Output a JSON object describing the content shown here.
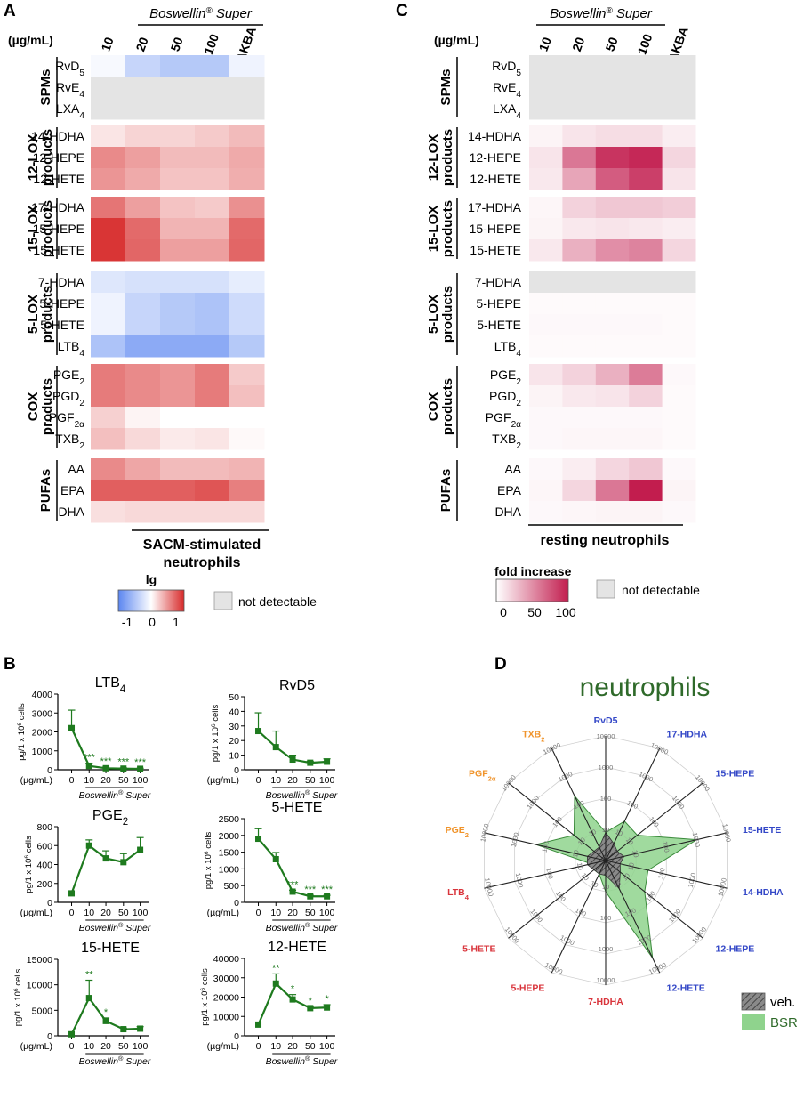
{
  "panel_labels": {
    "a": "A",
    "b": "B",
    "c": "C",
    "d": "D"
  },
  "heatmap_common": {
    "group_title": "Boswellin",
    "group_reg": "®",
    "group_super": " Super",
    "unit_label": "(µg/mL)",
    "columns": [
      "10",
      "20",
      "50",
      "100",
      "AKBA"
    ],
    "sections": [
      {
        "name": "SPMs",
        "name2": "",
        "rows": [
          "RvD",
          "RvE",
          "LXA"
        ],
        "subs": [
          "5",
          "4",
          "4"
        ]
      },
      {
        "name": "12-LOX",
        "name2": "products",
        "rows": [
          "14-HDHA",
          "12-HEPE",
          "12-HETE"
        ],
        "subs": [
          "",
          "",
          ""
        ]
      },
      {
        "name": "15-LOX",
        "name2": "products",
        "rows": [
          "17-HDHA",
          "15-HEPE",
          "15-HETE"
        ],
        "subs": [
          "",
          "",
          ""
        ]
      },
      {
        "name": "5-LOX",
        "name2": "products",
        "rows": [
          "7-HDHA",
          "5-HEPE",
          "5-HETE",
          "LTB"
        ],
        "subs": [
          "",
          "",
          "",
          "4"
        ]
      },
      {
        "name": "COX",
        "name2": "products",
        "rows": [
          "PGE",
          "PGD",
          "PGF",
          "TXB"
        ],
        "subs": [
          "2",
          "2",
          "2α",
          "2"
        ]
      },
      {
        "name": "PUFAs",
        "name2": "",
        "rows": [
          "AA",
          "EPA",
          "DHA"
        ],
        "subs": [
          "",
          "",
          ""
        ]
      }
    ]
  },
  "panel_a": {
    "title_line1": "SACM-stimulated",
    "title_line2": "neutrophils",
    "legend_title": "lg",
    "legend_ticks": [
      "-1",
      "0",
      "1"
    ],
    "nd_label": "not detectable"
  },
  "panel_c": {
    "title": "resting neutrophils",
    "legend_title": "fold increase",
    "legend_ticks": [
      "0",
      "50",
      "100"
    ],
    "nd_label": "not detectable"
  },
  "panel_b_common": {
    "ylabel": "pg/1 x 10",
    "ylabel_sup": "6",
    "ylabel_end": " cells",
    "xunit": "(µg/mL)",
    "xgroup": "Boswellin",
    "xgroup_reg": "®",
    "xgroup_super": " Super"
  },
  "panel_d": {
    "title": "neutrophils",
    "legend": [
      "veh.",
      "BSR"
    ]
  },
  "chart_data": [
    {
      "type": "heatmap",
      "id": "A",
      "title": "SACM-stimulated neutrophils",
      "scale": "lg",
      "range": [
        -1,
        1
      ],
      "columns": [
        "10",
        "20",
        "50",
        "100",
        "AKBA"
      ],
      "rows": [
        {
          "label": "RvD5",
          "values": [
            -0.05,
            -0.35,
            -0.45,
            -0.45,
            -0.1
          ]
        },
        {
          "label": "RvE4",
          "values": [
            null,
            null,
            null,
            null,
            null
          ]
        },
        {
          "label": "LXA4",
          "values": [
            null,
            null,
            null,
            null,
            null
          ]
        },
        {
          "label": "14-HDHA",
          "values": [
            0.12,
            0.2,
            0.2,
            0.25,
            0.32
          ]
        },
        {
          "label": "12-HEPE",
          "values": [
            0.55,
            0.45,
            0.32,
            0.32,
            0.4
          ]
        },
        {
          "label": "12-HETE",
          "values": [
            0.5,
            0.4,
            0.28,
            0.28,
            0.38
          ]
        },
        {
          "label": "17-HDHA",
          "values": [
            0.65,
            0.45,
            0.28,
            0.25,
            0.52
          ]
        },
        {
          "label": "15-HEPE",
          "values": [
            0.95,
            0.7,
            0.35,
            0.35,
            0.7
          ]
        },
        {
          "label": "15-HETE",
          "values": [
            0.95,
            0.72,
            0.45,
            0.45,
            0.72
          ]
        },
        {
          "label": "7-HDHA",
          "values": [
            -0.2,
            -0.25,
            -0.25,
            -0.25,
            -0.15
          ]
        },
        {
          "label": "5-HEPE",
          "values": [
            -0.1,
            -0.35,
            -0.45,
            -0.5,
            -0.3
          ]
        },
        {
          "label": "5-HETE",
          "values": [
            -0.1,
            -0.35,
            -0.45,
            -0.5,
            -0.3
          ]
        },
        {
          "label": "LTB4",
          "values": [
            -0.5,
            -0.7,
            -0.7,
            -0.7,
            -0.45
          ]
        },
        {
          "label": "PGE2",
          "values": [
            0.62,
            0.55,
            0.5,
            0.62,
            0.25
          ]
        },
        {
          "label": "PGD2",
          "values": [
            0.62,
            0.55,
            0.5,
            0.62,
            0.3
          ]
        },
        {
          "label": "PGF2α",
          "values": [
            0.22,
            0.05,
            0.0,
            0.0,
            0.0
          ]
        },
        {
          "label": "TXB2",
          "values": [
            0.3,
            0.18,
            0.1,
            0.12,
            0.03
          ]
        },
        {
          "label": "AA",
          "values": [
            0.55,
            0.42,
            0.32,
            0.32,
            0.35
          ]
        },
        {
          "label": "EPA",
          "values": [
            0.75,
            0.75,
            0.75,
            0.8,
            0.6
          ]
        },
        {
          "label": "DHA",
          "values": [
            0.15,
            0.18,
            0.18,
            0.18,
            0.18
          ]
        }
      ]
    },
    {
      "type": "heatmap",
      "id": "C",
      "title": "resting neutrophils",
      "scale": "fold increase",
      "range": [
        0,
        100
      ],
      "columns": [
        "10",
        "20",
        "50",
        "100",
        "AKBA"
      ],
      "rows": [
        {
          "label": "RvD5",
          "values": [
            null,
            null,
            null,
            null,
            null
          ]
        },
        {
          "label": "RvE4",
          "values": [
            null,
            null,
            null,
            null,
            null
          ]
        },
        {
          "label": "LXA4",
          "values": [
            null,
            null,
            null,
            null,
            null
          ]
        },
        {
          "label": "14-HDHA",
          "values": [
            5,
            12,
            15,
            15,
            8
          ]
        },
        {
          "label": "12-HEPE",
          "values": [
            12,
            60,
            90,
            95,
            18
          ]
        },
        {
          "label": "12-HETE",
          "values": [
            10,
            40,
            72,
            85,
            12
          ]
        },
        {
          "label": "17-HDHA",
          "values": [
            4,
            20,
            25,
            25,
            22
          ]
        },
        {
          "label": "15-HEPE",
          "values": [
            5,
            10,
            12,
            10,
            8
          ]
        },
        {
          "label": "15-HETE",
          "values": [
            10,
            35,
            50,
            55,
            18
          ]
        },
        {
          "label": "7-HDHA",
          "values": [
            null,
            null,
            null,
            null,
            null
          ]
        },
        {
          "label": "5-HEPE",
          "values": [
            2,
            2,
            2,
            2,
            2
          ]
        },
        {
          "label": "5-HETE",
          "values": [
            3,
            3,
            3,
            3,
            2
          ]
        },
        {
          "label": "LTB4",
          "values": [
            2,
            2,
            2,
            2,
            2
          ]
        },
        {
          "label": "PGE2",
          "values": [
            12,
            20,
            35,
            58,
            3
          ]
        },
        {
          "label": "PGD2",
          "values": [
            5,
            10,
            12,
            20,
            2
          ]
        },
        {
          "label": "PGF2α",
          "values": [
            3,
            3,
            3,
            3,
            2
          ]
        },
        {
          "label": "TXB2",
          "values": [
            3,
            4,
            4,
            4,
            2
          ]
        },
        {
          "label": "AA",
          "values": [
            3,
            8,
            18,
            25,
            3
          ]
        },
        {
          "label": "EPA",
          "values": [
            4,
            18,
            60,
            100,
            5
          ]
        },
        {
          "label": "DHA",
          "values": [
            3,
            4,
            5,
            5,
            3
          ]
        }
      ]
    },
    {
      "type": "line",
      "id": "B-LTB4",
      "title": "LTB",
      "title_sub": "4",
      "x": [
        "0",
        "10",
        "20",
        "50",
        "100"
      ],
      "values": [
        2200,
        200,
        80,
        60,
        50
      ],
      "errors": [
        950,
        150,
        60,
        40,
        30
      ],
      "ylim": [
        0,
        4000
      ],
      "yticks": [
        "0",
        "1000",
        "2000",
        "3000",
        "4000"
      ],
      "sig": [
        "",
        "***",
        "***",
        "***",
        "***"
      ],
      "show_group_label": true
    },
    {
      "type": "line",
      "id": "B-RvD5",
      "title": "RvD5",
      "title_sub": "",
      "x": [
        "0",
        "10",
        "20",
        "50",
        "100"
      ],
      "values": [
        26.5,
        15.5,
        7,
        4.8,
        5.5
      ],
      "errors": [
        12.5,
        11,
        3,
        1,
        2
      ],
      "ylim": [
        0,
        50
      ],
      "yticks": [
        "0",
        "10",
        "20",
        "30",
        "40",
        "50"
      ],
      "sig": [
        "",
        "",
        "",
        "",
        ""
      ],
      "show_group_label": true
    },
    {
      "type": "line",
      "id": "B-PGE2",
      "title": "PGE",
      "title_sub": "2",
      "x": [
        "0",
        "10",
        "20",
        "50",
        "100"
      ],
      "values": [
        95,
        600,
        465,
        425,
        555
      ],
      "errors": [
        0,
        60,
        80,
        90,
        130
      ],
      "ylim": [
        0,
        800
      ],
      "yticks": [
        "0",
        "200",
        "400",
        "600",
        "800"
      ],
      "sig": [
        "",
        "",
        "",
        "",
        ""
      ],
      "show_group_label": true
    },
    {
      "type": "line",
      "id": "B-5HETE",
      "title": "5-HETE",
      "title_sub": "",
      "x": [
        "0",
        "10",
        "20",
        "50",
        "100"
      ],
      "values": [
        1900,
        1290,
        320,
        180,
        180
      ],
      "errors": [
        300,
        200,
        40,
        30,
        30
      ],
      "ylim": [
        0,
        2500
      ],
      "yticks": [
        "0",
        "500",
        "1000",
        "1500",
        "2000",
        "2500"
      ],
      "sig": [
        "",
        "",
        "***",
        "***",
        "***"
      ],
      "show_group_label": true
    },
    {
      "type": "line",
      "id": "B-15HETE",
      "title": "15-HETE",
      "title_sub": "",
      "x": [
        "0",
        "10",
        "20",
        "50",
        "100"
      ],
      "values": [
        300,
        7400,
        2900,
        1300,
        1400
      ],
      "errors": [
        0,
        3500,
        600,
        200,
        400
      ],
      "ylim": [
        0,
        15000
      ],
      "yticks": [
        "0",
        "5000",
        "10000",
        "15000"
      ],
      "sig": [
        "",
        "**",
        "*",
        "",
        ""
      ],
      "show_group_label": true
    },
    {
      "type": "line",
      "id": "B-12HETE",
      "title": "12-HETE",
      "title_sub": "",
      "x": [
        "0",
        "10",
        "20",
        "50",
        "100"
      ],
      "values": [
        5800,
        27000,
        18800,
        14300,
        14600
      ],
      "errors": [
        0,
        5000,
        2500,
        800,
        1500
      ],
      "ylim": [
        0,
        40000
      ],
      "yticks": [
        "0",
        "10000",
        "20000",
        "30000",
        "40000"
      ],
      "sig": [
        "",
        "**",
        "*",
        "*",
        "*"
      ],
      "show_group_label": true
    },
    {
      "type": "radar",
      "id": "D",
      "title": "neutrophils",
      "axes": [
        {
          "label": "RvD5",
          "color": "#3347c7"
        },
        {
          "label": "17-HDHA",
          "color": "#3347c7"
        },
        {
          "label": "15-HEPE",
          "color": "#3347c7"
        },
        {
          "label": "15-HETE",
          "color": "#3347c7"
        },
        {
          "label": "14-HDHA",
          "color": "#3347c7"
        },
        {
          "label": "12-HEPE",
          "color": "#3347c7"
        },
        {
          "label": "12-HETE",
          "color": "#3347c7"
        },
        {
          "label": "7-HDHA",
          "color": "#d9353c"
        },
        {
          "label": "5-HEPE",
          "color": "#d9353c"
        },
        {
          "label": "5-HETE",
          "color": "#d9353c"
        },
        {
          "label": "LTB",
          "sub": "4",
          "color": "#d9353c"
        },
        {
          "label": "PGE",
          "sub": "2",
          "color": "#f0932a"
        },
        {
          "label": "PGF",
          "sub": "2α",
          "color": "#f0932a"
        },
        {
          "label": "TXB",
          "sub": "2",
          "color": "#f0932a"
        }
      ],
      "ring_values": [
        10,
        100,
        1000,
        10000
      ],
      "scale": "log10",
      "series": [
        {
          "name": "veh.",
          "values": [
            8,
            4,
            3,
            4,
            3,
            4,
            10,
            3,
            3,
            3,
            4,
            4,
            3,
            3
          ]
        },
        {
          "name": "BSR",
          "values": [
            8,
            25,
            20,
            1000,
            25,
            40,
            3000,
            10,
            3,
            3,
            3,
            200,
            20,
            200
          ]
        }
      ]
    }
  ]
}
